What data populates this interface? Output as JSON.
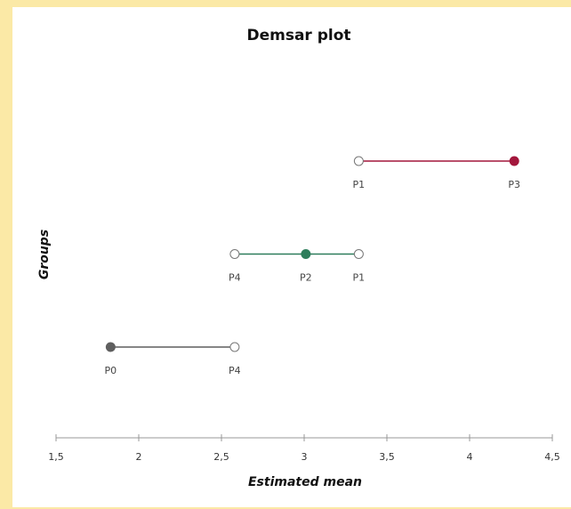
{
  "chart_data": {
    "type": "demsar",
    "title": "Demsar plot",
    "x_label": "Estimated  mean",
    "y_label": "Groups",
    "xlim": [
      1.5,
      4.5
    ],
    "xticks": [
      {
        "value": 1.5,
        "label": "1,5"
      },
      2,
      {
        "value": 2.5,
        "label": "2,5"
      },
      3,
      {
        "value": 3.5,
        "label": "3,5"
      },
      4,
      {
        "value": 4.5,
        "label": "4,5"
      }
    ],
    "series": [
      {
        "labels": [
          "P1",
          "P3"
        ],
        "values": [
          3.33,
          4.27
        ],
        "filled": [
          false,
          true
        ],
        "color": "#a3173c"
      },
      {
        "labels": [
          "P4",
          "P2",
          "P1"
        ],
        "values": [
          2.58,
          3.01,
          3.33
        ],
        "filled": [
          false,
          true,
          false
        ],
        "color": "#2e7d5b"
      },
      {
        "labels": [
          "P0",
          "P4"
        ],
        "values": [
          1.83,
          2.58
        ],
        "filled": [
          true,
          false
        ],
        "color": "#5f5f5f"
      }
    ]
  }
}
